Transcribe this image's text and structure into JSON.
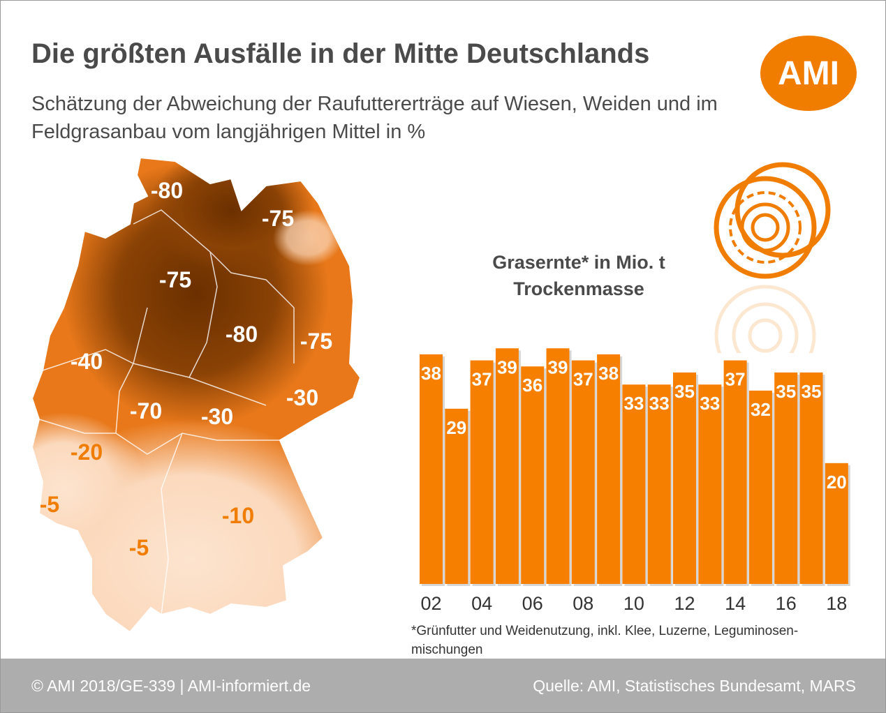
{
  "header": {
    "title": "Die größten Ausfälle in der Mitte Deutschlands",
    "subtitle": "Schätzung der Abweichung der Raufuttererträge auf Wiesen, Weiden und im Feldgrasanbau vom langjährigen Mittel in %",
    "logo": "AMI"
  },
  "map": {
    "labels": [
      {
        "text": "-80",
        "tone": "dark"
      },
      {
        "text": "-75",
        "tone": "dark"
      },
      {
        "text": "-75",
        "tone": "dark"
      },
      {
        "text": "-80",
        "tone": "dark"
      },
      {
        "text": "-75",
        "tone": "dark"
      },
      {
        "text": "-40",
        "tone": "dark"
      },
      {
        "text": "-30",
        "tone": "dark"
      },
      {
        "text": "-70",
        "tone": "dark"
      },
      {
        "text": "-30",
        "tone": "dark"
      },
      {
        "text": "-20",
        "tone": "light"
      },
      {
        "text": "-5",
        "tone": "light"
      },
      {
        "text": "-10",
        "tone": "light"
      },
      {
        "text": "-5",
        "tone": "light"
      }
    ]
  },
  "chart_data": {
    "type": "bar",
    "title": "Grasernte* in Mio. t Trockenmasse",
    "title_line1": "Grasernte* in Mio. t",
    "title_line2": "Trockenmasse",
    "categories": [
      "02",
      "03",
      "04",
      "05",
      "06",
      "07",
      "08",
      "09",
      "10",
      "11",
      "12",
      "13",
      "14",
      "15",
      "16",
      "17",
      "18"
    ],
    "tick_labels": [
      "02",
      "04",
      "06",
      "08",
      "10",
      "12",
      "14",
      "16",
      "18"
    ],
    "values": [
      38,
      29,
      37,
      39,
      36,
      39,
      37,
      38,
      33,
      33,
      35,
      33,
      37,
      32,
      35,
      35,
      20
    ],
    "ylim": [
      0,
      40
    ],
    "bar_color": "#f77f00",
    "footnote": "*Grünfutter und Weidenutzung, inkl. Klee, Luzerne, Leguminosen-mischungen"
  },
  "footer": {
    "left": "© AMI 2018/GE-339 | AMI-informiert.de",
    "right": "Quelle: AMI, Statistisches Bundesamt, MARS"
  }
}
